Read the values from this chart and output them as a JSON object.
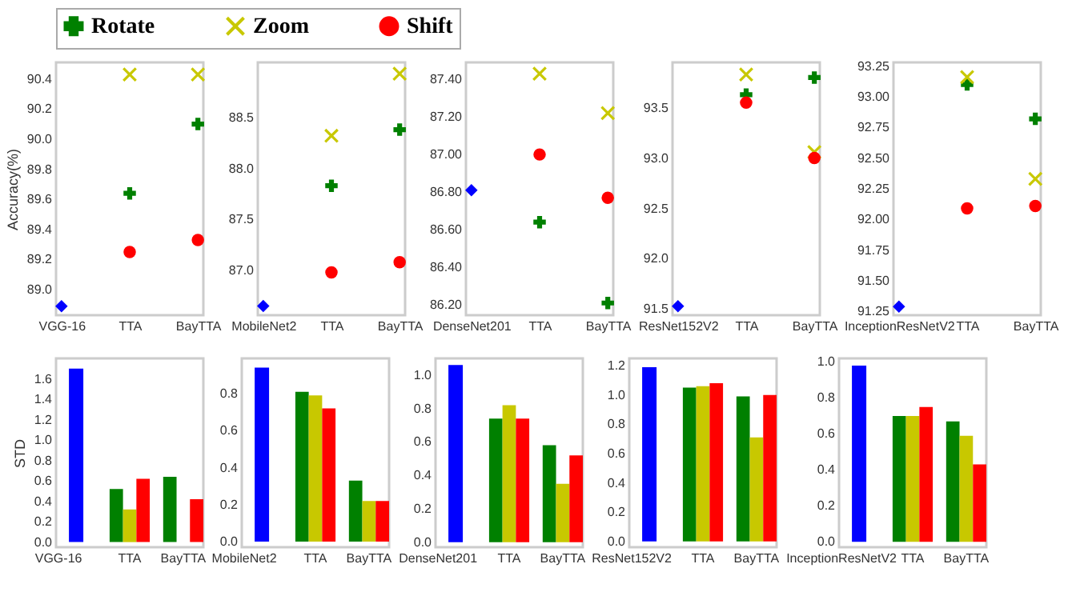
{
  "chart_data": [
    {
      "type": "scatter",
      "categories": [
        "VGG-16",
        "TTA",
        "BayTTA"
      ],
      "ylabel": "Accuracy(%)",
      "ylim": [
        88.83,
        90.51
      ],
      "yticks": [
        {
          "value": 89,
          "label": "89.0"
        },
        89.2,
        89.4,
        89.6,
        89.8,
        {
          "value": 90,
          "label": "90.0"
        },
        90.2,
        90.4
      ],
      "legend": "top",
      "series": [
        {
          "color": "#0000ff",
          "marker": "diamond",
          "values": [
            88.89,
            null,
            null
          ]
        },
        {
          "name": "Rotate",
          "color": "#008000",
          "marker": "cross",
          "values": [
            null,
            89.64,
            90.1
          ]
        },
        {
          "name": "Zoom",
          "color": "#c8c800",
          "marker": "x",
          "values": [
            null,
            90.43,
            90.43
          ]
        },
        {
          "name": "Shift",
          "color": "#ff0000",
          "marker": "circle",
          "values": [
            null,
            89.25,
            89.33
          ]
        }
      ]
    },
    {
      "type": "scatter",
      "categories": [
        "MobileNet2",
        "TTA",
        "BayTTA"
      ],
      "ylim": [
        86.56,
        89.04
      ],
      "yticks": [
        {
          "value": 87,
          "label": "87.0"
        },
        87.5,
        {
          "value": 88,
          "label": "88.0"
        },
        88.5
      ],
      "series": [
        {
          "color": "#0000ff",
          "marker": "diamond",
          "values": [
            86.65,
            null,
            null
          ]
        },
        {
          "name": "Rotate",
          "color": "#008000",
          "marker": "cross",
          "values": [
            null,
            87.83,
            88.38
          ]
        },
        {
          "name": "Zoom",
          "color": "#c8c800",
          "marker": "x",
          "values": [
            null,
            88.32,
            88.93
          ]
        },
        {
          "name": "Shift",
          "color": "#ff0000",
          "marker": "circle",
          "values": [
            null,
            86.98,
            87.08
          ]
        }
      ]
    },
    {
      "type": "scatter",
      "categories": [
        "DenseNet201",
        "TTA",
        "BayTTA"
      ],
      "ylim": [
        86.145,
        87.49
      ],
      "yticks": [
        {
          "value": 86.2,
          "label": "86.20"
        },
        {
          "value": 86.4,
          "label": "86.40"
        },
        {
          "value": 86.6,
          "label": "86.60"
        },
        {
          "value": 86.8,
          "label": "86.80"
        },
        {
          "value": 87,
          "label": "87.00"
        },
        {
          "value": 87.2,
          "label": "87.20"
        },
        {
          "value": 87.4,
          "label": "87.40"
        }
      ],
      "series": [
        {
          "color": "#0000ff",
          "marker": "diamond",
          "values": [
            86.81,
            null,
            null
          ]
        },
        {
          "name": "Rotate",
          "color": "#008000",
          "marker": "cross",
          "values": [
            null,
            86.64,
            86.21
          ]
        },
        {
          "name": "Zoom",
          "color": "#c8c800",
          "marker": "x",
          "values": [
            null,
            87.43,
            87.22
          ]
        },
        {
          "name": "Shift",
          "color": "#ff0000",
          "marker": "circle",
          "values": [
            null,
            87.0,
            86.77
          ]
        }
      ]
    },
    {
      "type": "scatter",
      "categories": [
        "ResNet152V2",
        "TTA",
        "BayTTA"
      ],
      "ylim": [
        91.44,
        93.95
      ],
      "yticks": [
        91.5,
        {
          "value": 92,
          "label": "92.0"
        },
        92.5,
        {
          "value": 93,
          "label": "93.0"
        },
        93.5
      ],
      "series": [
        {
          "color": "#0000ff",
          "marker": "diamond",
          "values": [
            91.53,
            null,
            null
          ]
        },
        {
          "name": "Rotate",
          "color": "#008000",
          "marker": "cross",
          "values": [
            null,
            93.63,
            93.8
          ]
        },
        {
          "name": "Zoom",
          "color": "#c8c800",
          "marker": "x",
          "values": [
            null,
            93.83,
            93.06
          ]
        },
        {
          "name": "Shift",
          "color": "#ff0000",
          "marker": "circle",
          "values": [
            null,
            93.55,
            93.0
          ]
        }
      ]
    },
    {
      "type": "scatter",
      "categories": [
        "InceptionResNetV2",
        "TTA",
        "BayTTA"
      ],
      "ylim": [
        91.22,
        93.28
      ],
      "yticks": [
        91.25,
        {
          "value": 91.5,
          "label": "91.50"
        },
        91.75,
        {
          "value": 92,
          "label": "92.00"
        },
        92.25,
        {
          "value": 92.5,
          "label": "92.50"
        },
        92.75,
        {
          "value": 93,
          "label": "93.00"
        },
        93.25
      ],
      "series": [
        {
          "color": "#0000ff",
          "marker": "diamond",
          "values": [
            91.29,
            null,
            null
          ]
        },
        {
          "name": "Rotate",
          "color": "#008000",
          "marker": "cross",
          "values": [
            null,
            93.1,
            92.82
          ]
        },
        {
          "name": "Zoom",
          "color": "#c8c800",
          "marker": "x",
          "values": [
            null,
            93.16,
            92.33
          ]
        },
        {
          "name": "Shift",
          "color": "#ff0000",
          "marker": "circle",
          "values": [
            null,
            92.09,
            92.11
          ]
        }
      ]
    },
    {
      "type": "bar",
      "categories": [
        "VGG-16",
        "TTA",
        "BayTTA"
      ],
      "ylabel": "STD",
      "ylim": [
        -0.05,
        1.8
      ],
      "yticks": [
        {
          "value": 0,
          "label": "0.0"
        },
        0.2,
        0.4,
        0.6,
        0.8,
        {
          "value": 1,
          "label": "1.0"
        },
        1.2,
        1.4,
        1.6
      ],
      "series": [
        {
          "color": "#0000ff",
          "values": [
            1.7,
            null,
            null
          ]
        },
        {
          "name": "Rotate",
          "color": "#008000",
          "values": [
            null,
            0.52,
            0.64
          ]
        },
        {
          "name": "Zoom",
          "color": "#c8c800",
          "values": [
            null,
            0.32,
            null
          ]
        },
        {
          "name": "Shift",
          "color": "#ff0000",
          "values": [
            null,
            0.62,
            0.42
          ]
        }
      ]
    },
    {
      "type": "bar",
      "categories": [
        "MobileNet2",
        "TTA",
        "BayTTA"
      ],
      "ylim": [
        -0.03,
        0.99
      ],
      "yticks": [
        {
          "value": 0,
          "label": "0.0"
        },
        0.2,
        0.4,
        0.6,
        0.8
      ],
      "series": [
        {
          "color": "#0000ff",
          "values": [
            0.94,
            null,
            null
          ]
        },
        {
          "name": "Rotate",
          "color": "#008000",
          "values": [
            null,
            0.81,
            0.33
          ]
        },
        {
          "name": "Zoom",
          "color": "#c8c800",
          "values": [
            null,
            0.79,
            0.22
          ]
        },
        {
          "name": "Shift",
          "color": "#ff0000",
          "values": [
            null,
            0.72,
            0.22
          ]
        }
      ]
    },
    {
      "type": "bar",
      "categories": [
        "DenseNet201",
        "TTA",
        "BayTTA"
      ],
      "ylim": [
        -0.03,
        1.1
      ],
      "yticks": [
        {
          "value": 0,
          "label": "0.0"
        },
        0.2,
        0.4,
        0.6,
        0.8,
        {
          "value": 1,
          "label": "1.0"
        }
      ],
      "series": [
        {
          "color": "#0000ff",
          "values": [
            1.06,
            null,
            null
          ]
        },
        {
          "name": "Rotate",
          "color": "#008000",
          "values": [
            null,
            0.74,
            0.58
          ]
        },
        {
          "name": "Zoom",
          "color": "#c8c800",
          "values": [
            null,
            0.82,
            0.35
          ]
        },
        {
          "name": "Shift",
          "color": "#ff0000",
          "values": [
            null,
            0.74,
            0.52
          ]
        }
      ]
    },
    {
      "type": "bar",
      "categories": [
        "ResNet152V2",
        "TTA",
        "BayTTA"
      ],
      "ylim": [
        -0.04,
        1.25
      ],
      "yticks": [
        {
          "value": 0,
          "label": "0.0"
        },
        0.2,
        0.4,
        0.6,
        0.8,
        {
          "value": 1,
          "label": "1.0"
        },
        1.2
      ],
      "series": [
        {
          "color": "#0000ff",
          "values": [
            1.19,
            null,
            null
          ]
        },
        {
          "name": "Rotate",
          "color": "#008000",
          "values": [
            null,
            1.05,
            0.99
          ]
        },
        {
          "name": "Zoom",
          "color": "#c8c800",
          "values": [
            null,
            1.06,
            0.71
          ]
        },
        {
          "name": "Shift",
          "color": "#ff0000",
          "values": [
            null,
            1.08,
            1.0
          ]
        }
      ]
    },
    {
      "type": "bar",
      "categories": [
        "InceptionResNetV2",
        "TTA",
        "BayTTA"
      ],
      "ylim": [
        -0.03,
        1.02
      ],
      "yticks": [
        {
          "value": 0,
          "label": "0.0"
        },
        0.2,
        0.4,
        0.6,
        0.8,
        {
          "value": 1,
          "label": "1.0"
        }
      ],
      "series": [
        {
          "color": "#0000ff",
          "values": [
            0.98,
            null,
            null
          ]
        },
        {
          "name": "Rotate",
          "color": "#008000",
          "values": [
            null,
            0.7,
            0.67
          ]
        },
        {
          "name": "Zoom",
          "color": "#c8c800",
          "values": [
            null,
            0.7,
            0.59
          ]
        },
        {
          "name": "Shift",
          "color": "#ff0000",
          "values": [
            null,
            0.75,
            0.43
          ]
        }
      ]
    }
  ]
}
